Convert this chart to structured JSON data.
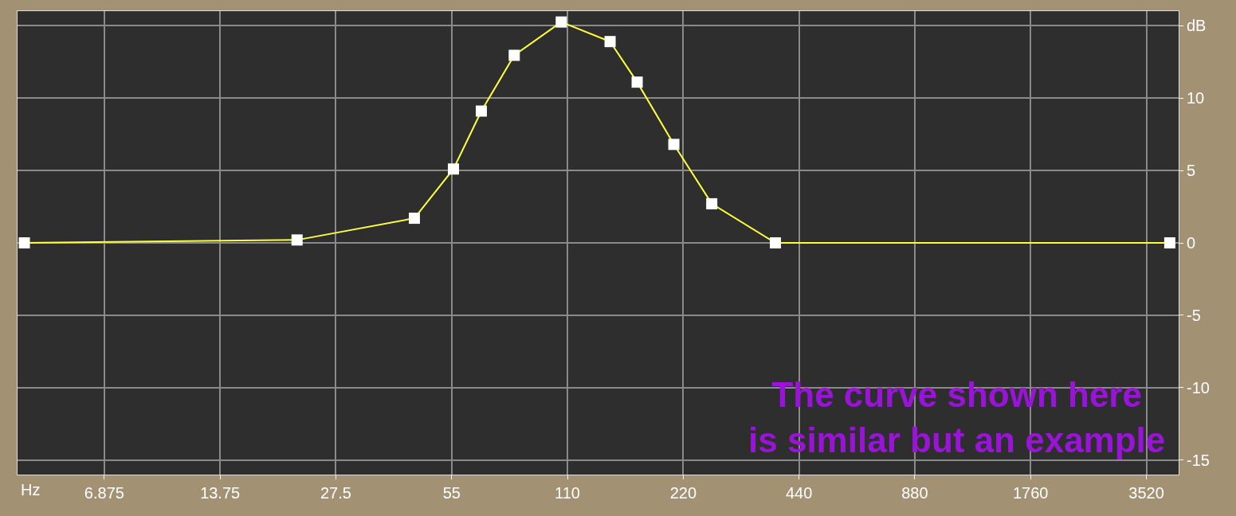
{
  "chart_data": {
    "type": "line",
    "xlabel": "Hz",
    "log": "x",
    "x": [
      4.26,
      21.8,
      44.0,
      55.6,
      65.7,
      80,
      106,
      142,
      167,
      208,
      261,
      382,
      4050
    ],
    "series": [
      {
        "color": "#ffff40",
        "values": [
          0,
          0.2,
          1.7,
          5.1,
          9.1,
          12.95,
          15.25,
          13.9,
          11.1,
          6.8,
          2.7,
          0,
          0
        ]
      }
    ],
    "xlim": [
      4.09,
      4270
    ],
    "xticks": [
      6.875,
      13.75,
      27.5,
      55,
      110,
      220,
      440,
      880,
      1760,
      3520
    ],
    "ylim": [
      -16,
      16
    ],
    "yticks": [
      {
        "value": 15,
        "label": "dB"
      },
      10,
      5,
      0,
      -5,
      -10,
      -15
    ],
    "grid": true,
    "marker": "square",
    "line_style": "solid",
    "legend": false,
    "annotations": [
      "The curve shown here\nis similar but an example"
    ]
  }
}
